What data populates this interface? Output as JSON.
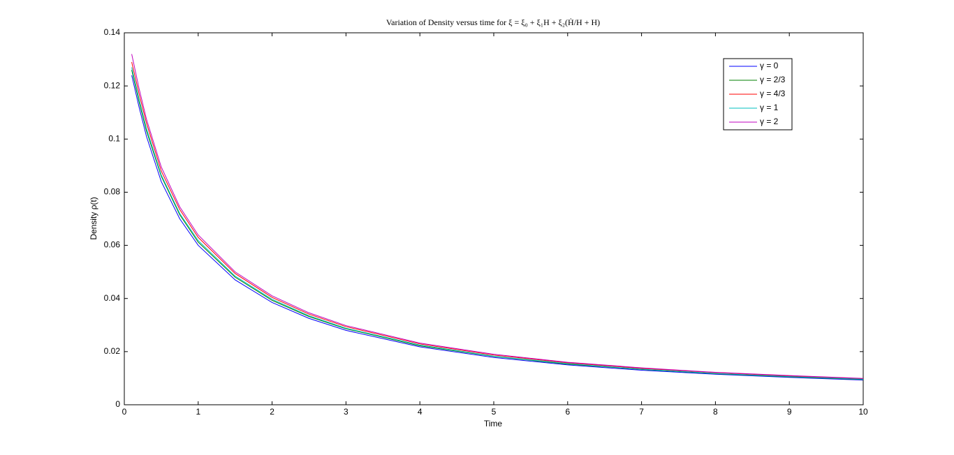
{
  "chart_data": {
    "type": "line",
    "title": "Variation of Density versus time for ξ = ξ₀ + ξ₁H + ξ₂(Ḣ/H + H)",
    "x_label": "Time",
    "y_label": "Density ρ(t)",
    "x": [
      0.1,
      0.2,
      0.3,
      0.5,
      0.75,
      1,
      1.5,
      2,
      2.5,
      3,
      4,
      5,
      6,
      7,
      8,
      9,
      10
    ],
    "series": [
      {
        "name": "γ = 0",
        "color": "#0000ff",
        "values": [
          0.124,
          0.112,
          0.101,
          0.084,
          0.07,
          0.06,
          0.047,
          0.0385,
          0.0325,
          0.028,
          0.0218,
          0.0178,
          0.015,
          0.013,
          0.0115,
          0.0103,
          0.0093
        ]
      },
      {
        "name": "γ = 2/3",
        "color": "#008000",
        "values": [
          0.126,
          0.114,
          0.103,
          0.086,
          0.0715,
          0.0612,
          0.048,
          0.0393,
          0.0332,
          0.0286,
          0.0222,
          0.0182,
          0.0153,
          0.0133,
          0.0117,
          0.0105,
          0.0095
        ]
      },
      {
        "name": "γ = 4/3",
        "color": "#ff0000",
        "values": [
          0.129,
          0.117,
          0.106,
          0.088,
          0.0735,
          0.063,
          0.0494,
          0.0404,
          0.0341,
          0.0294,
          0.0229,
          0.0187,
          0.0158,
          0.0137,
          0.0121,
          0.0108,
          0.0098
        ]
      },
      {
        "name": "γ = 1",
        "color": "#00bfbf",
        "values": [
          0.127,
          0.115,
          0.104,
          0.0865,
          0.072,
          0.0618,
          0.0484,
          0.0397,
          0.0335,
          0.0288,
          0.0225,
          0.0183,
          0.0155,
          0.0134,
          0.0118,
          0.0106,
          0.0096
        ]
      },
      {
        "name": "γ = 2",
        "color": "#bf00bf",
        "values": [
          0.132,
          0.119,
          0.1075,
          0.0895,
          0.0745,
          0.0639,
          0.05,
          0.041,
          0.0346,
          0.0298,
          0.0232,
          0.019,
          0.016,
          0.0139,
          0.0122,
          0.011,
          0.0099
        ]
      }
    ],
    "xlim": [
      0,
      10
    ],
    "ylim": [
      0,
      0.14
    ],
    "xticks": [
      0,
      1,
      2,
      3,
      4,
      5,
      6,
      7,
      8,
      9,
      10
    ],
    "yticks": [
      0,
      0.02,
      0.04,
      0.06,
      0.08,
      0.1,
      0.12,
      0.14
    ],
    "grid": false,
    "legend": "upper right"
  }
}
